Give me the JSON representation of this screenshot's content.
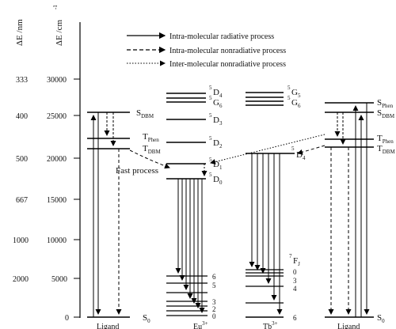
{
  "axis": {
    "nm_title": "ΔE /nm",
    "cm_title": "ΔE /cm",
    "cm_title_sup": "-1",
    "nm_ticks": [
      "333",
      "400",
      "500",
      "667",
      "1000",
      "2000"
    ],
    "cm_ticks": [
      "30000",
      "25000",
      "20000",
      "15000",
      "10000",
      "5000",
      "0"
    ]
  },
  "legend": {
    "radiative": "Intra-molecular radiative process",
    "intra_nonradiative": "Intra-molecular nonradiative process",
    "inter_nonradiative": "Inter-molecular nonradiative process"
  },
  "ligand_left": {
    "s_dbm": "DBM",
    "t_phen": "Phen",
    "t_dbm": "DBM",
    "s0": "0",
    "bottom_label": "Ligand"
  },
  "eu": {
    "d4": "D",
    "d4_sub": "4",
    "g6": "G",
    "g6_sub": "6",
    "d3": "D",
    "d3_sub": "3",
    "d2": "D",
    "d2_sub": "2",
    "d1": "D",
    "d1_sub": "1",
    "d0": "D",
    "d0_sub": "0",
    "sup5": "5",
    "f_levels": [
      "6",
      "5",
      "3",
      "2",
      "0"
    ],
    "fast_process": "Fast process",
    "bottom_label": "Eu"
  },
  "tb": {
    "g5": "G",
    "g5_sub": "5",
    "g6": "G",
    "g6_sub": "6",
    "d4": "D",
    "d4_sub": "4",
    "sup5": "5",
    "sup7": "7",
    "fj": "F",
    "fj_sub": "J",
    "f_levels": [
      "0",
      "3",
      "4",
      "6"
    ],
    "bottom_label": "Tb"
  },
  "ligand_right": {
    "s_phen": "Phen",
    "s_dbm": "DBM",
    "t_phen": "Phen",
    "t_dbm": "DBM",
    "s0": "0",
    "bottom_label": "Ligand"
  }
}
